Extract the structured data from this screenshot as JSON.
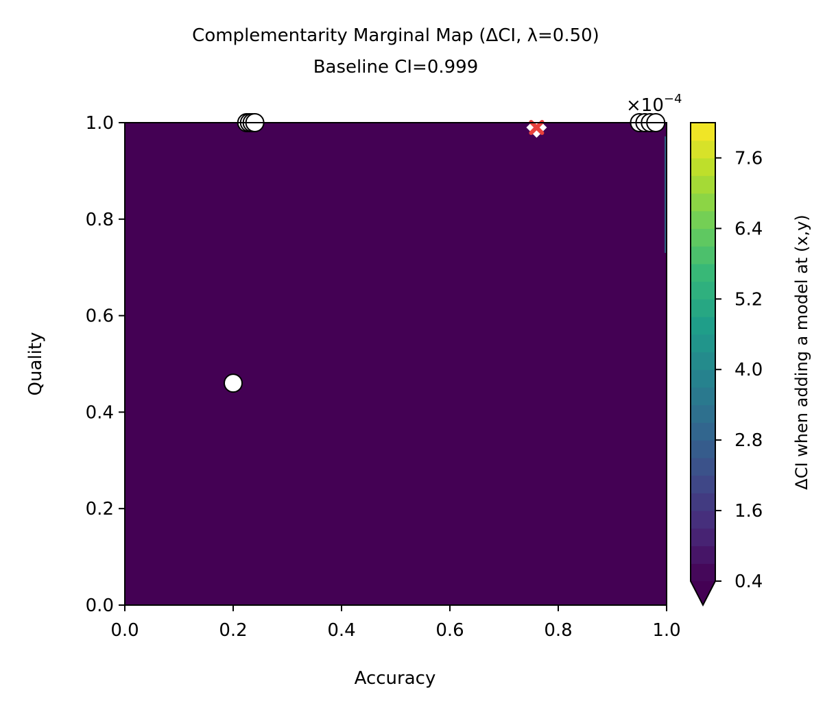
{
  "chart_data": {
    "type": "heatmap",
    "title": "Complementarity Marginal Map (ΔCI, λ=0.50)",
    "subtitle": "Baseline CI=0.999",
    "xlabel": "Accuracy",
    "ylabel": "Quality",
    "xlim": [
      0.0,
      1.0
    ],
    "ylim": [
      0.0,
      1.0
    ],
    "x_ticks": [
      "0.0",
      "0.2",
      "0.4",
      "0.6",
      "0.8",
      "1.0"
    ],
    "y_ticks": [
      "0.0",
      "0.2",
      "0.4",
      "0.6",
      "0.8",
      "1.0"
    ],
    "grid": false,
    "field_description": "Delta CI field is below 0.4e-4 across nearly the whole domain",
    "background_color": "#440154",
    "edge_color": "#2a788e",
    "colorbar": {
      "label": "ΔCI when adding a model at (x,y)",
      "scale_label": "×10",
      "scale_exponent": "−4",
      "min": 0.4,
      "max": 8.2,
      "ticks": [
        "0.4",
        "1.6",
        "2.8",
        "4.0",
        "5.2",
        "6.4",
        "7.6"
      ],
      "extend": "min",
      "colormap": "viridis"
    },
    "points": [
      {
        "x": 0.2,
        "y": 0.46
      },
      {
        "x": 0.225,
        "y": 1.0
      },
      {
        "x": 0.23,
        "y": 1.0
      },
      {
        "x": 0.235,
        "y": 1.0
      },
      {
        "x": 0.24,
        "y": 1.0
      },
      {
        "x": 0.95,
        "y": 1.0
      },
      {
        "x": 0.96,
        "y": 1.0
      },
      {
        "x": 0.97,
        "y": 1.0
      },
      {
        "x": 0.98,
        "y": 1.0
      }
    ],
    "best_marker": {
      "x": 0.76,
      "y": 0.99,
      "color": "#e8413c"
    }
  }
}
